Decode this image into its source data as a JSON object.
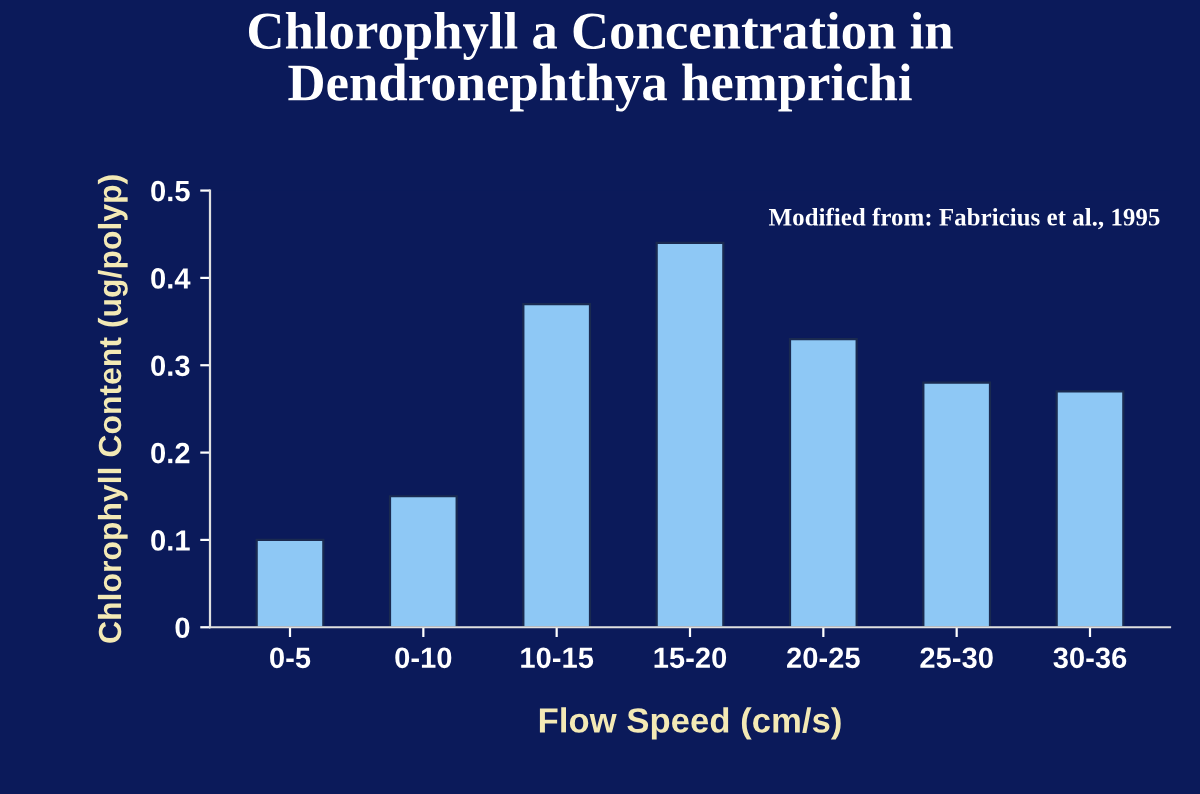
{
  "chart_data": {
    "type": "bar",
    "title": "Chlorophyll a Concentration in\nDendronephthya hemprichi",
    "xlabel": "Flow Speed (cm/s)",
    "ylabel": "Chlorophyll Content (ug/polyp)",
    "categories": [
      "0-5",
      "0-10",
      "10-15",
      "15-20",
      "20-25",
      "25-30",
      "30-36"
    ],
    "values": [
      0.1,
      0.15,
      0.37,
      0.44,
      0.33,
      0.28,
      0.27
    ],
    "color": "#8ec8f5",
    "ylim": [
      0,
      0.5
    ],
    "yticks": [
      0,
      0.1,
      0.2,
      0.3,
      0.4,
      0.5
    ],
    "grid": false,
    "annotations": [
      "Modified from: Fabricius et al., 1995"
    ]
  }
}
